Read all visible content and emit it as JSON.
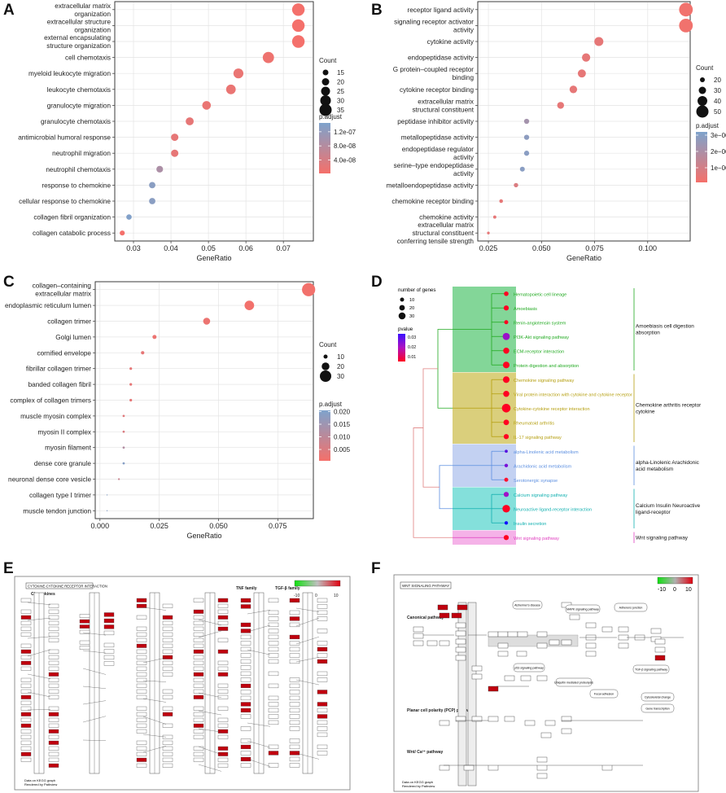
{
  "figure": {
    "panels": [
      "A",
      "B",
      "C",
      "D",
      "E",
      "F"
    ],
    "colors": {
      "low_p": "#f5706a",
      "high_p": "#7ea3cc",
      "grid": "#e4e4e4"
    }
  },
  "chart_data": [
    {
      "id": "A",
      "type": "scatter",
      "xlabel": "GeneRatio",
      "xlim": [
        0.025,
        0.078
      ],
      "xticks": [
        0.03,
        0.04,
        0.05,
        0.06,
        0.07
      ],
      "xtick_labels": [
        "0.03",
        "0.04",
        "0.05",
        "0.06",
        "0.07"
      ],
      "categories": [
        {
          "lines": [
            "extracellular matrix",
            "organization"
          ],
          "x": 0.074,
          "count": 36,
          "p": 3e-09
        },
        {
          "lines": [
            "extracellular structure",
            "organization"
          ],
          "x": 0.074,
          "count": 36,
          "p": 3e-09
        },
        {
          "lines": [
            "external encapsulating",
            "structure organization"
          ],
          "x": 0.074,
          "count": 36,
          "p": 3e-09
        },
        {
          "lines": [
            "cell chemotaxis"
          ],
          "x": 0.066,
          "count": 32,
          "p": 1e-08
        },
        {
          "lines": [
            "myeloid leukocyte migration"
          ],
          "x": 0.058,
          "count": 28,
          "p": 1.5e-08
        },
        {
          "lines": [
            "leukocyte chemotaxis"
          ],
          "x": 0.056,
          "count": 27,
          "p": 1.5e-08
        },
        {
          "lines": [
            "granulocyte migration"
          ],
          "x": 0.0495,
          "count": 24,
          "p": 1.5e-08
        },
        {
          "lines": [
            "granulocyte chemotaxis"
          ],
          "x": 0.045,
          "count": 22,
          "p": 2e-08
        },
        {
          "lines": [
            "antimicrobial humoral response"
          ],
          "x": 0.041,
          "count": 20,
          "p": 2e-08
        },
        {
          "lines": [
            "neutrophil migration"
          ],
          "x": 0.041,
          "count": 20,
          "p": 2e-08
        },
        {
          "lines": [
            "neutrophil chemotaxis"
          ],
          "x": 0.037,
          "count": 18,
          "p": 9e-08
        },
        {
          "lines": [
            "response to chemokine"
          ],
          "x": 0.035,
          "count": 17,
          "p": 1.3e-07
        },
        {
          "lines": [
            "cellular response to chemokine"
          ],
          "x": 0.035,
          "count": 17,
          "p": 1.3e-07
        },
        {
          "lines": [
            "collagen fibril organization"
          ],
          "x": 0.0288,
          "count": 14,
          "p": 1.4e-07
        },
        {
          "lines": [
            "collagen catabolic process"
          ],
          "x": 0.027,
          "count": 13,
          "p": 3e-09
        }
      ],
      "size_legend": {
        "title": "Count",
        "values": [
          15,
          20,
          25,
          30,
          35
        ]
      },
      "color_legend": {
        "title": "p.adjust",
        "labels": [
          "1.2e-07",
          "8.0e-08",
          "4.0e-08"
        ],
        "ticks": [
          1.2e-07,
          8e-08,
          4e-08
        ],
        "range": [
          2e-09,
          1.45e-07
        ]
      }
    },
    {
      "id": "B",
      "type": "scatter",
      "xlabel": "GeneRatio",
      "xlim": [
        0.02,
        0.12
      ],
      "xticks": [
        0.025,
        0.05,
        0.075,
        0.1
      ],
      "xtick_labels": [
        "0.025",
        "0.050",
        "0.075",
        "0.100"
      ],
      "categories": [
        {
          "lines": [
            "receptor ligand activity"
          ],
          "x": 0.118,
          "count": 56,
          "p": 2e-07
        },
        {
          "lines": [
            "signaling receptor activator",
            "activity"
          ],
          "x": 0.118,
          "count": 56,
          "p": 2e-07
        },
        {
          "lines": [
            "cytokine activity"
          ],
          "x": 0.077,
          "count": 37,
          "p": 5e-07
        },
        {
          "lines": [
            "endopeptidase activity"
          ],
          "x": 0.071,
          "count": 34,
          "p": 5e-07
        },
        {
          "lines": [
            "G protein–coupled receptor",
            "binding"
          ],
          "x": 0.069,
          "count": 33,
          "p": 5e-07
        },
        {
          "lines": [
            "cytokine receptor binding"
          ],
          "x": 0.065,
          "count": 31,
          "p": 5e-07
        },
        {
          "lines": [
            "extracellular matrix",
            "structural constituent"
          ],
          "x": 0.059,
          "count": 28,
          "p": 5e-07
        },
        {
          "lines": [
            "peptidase inhibitor activity"
          ],
          "x": 0.043,
          "count": 21,
          "p": 2.2e-06
        },
        {
          "lines": [
            "metallopeptidase activity"
          ],
          "x": 0.043,
          "count": 21,
          "p": 2.8e-06
        },
        {
          "lines": [
            "endopeptidase regulator",
            "activity"
          ],
          "x": 0.043,
          "count": 21,
          "p": 2.9e-06
        },
        {
          "lines": [
            "serine–type endopeptidase",
            "activity"
          ],
          "x": 0.041,
          "count": 20,
          "p": 2.9e-06
        },
        {
          "lines": [
            "metalloendopeptidase activity"
          ],
          "x": 0.038,
          "count": 18,
          "p": 8e-07
        },
        {
          "lines": [
            "chemokine receptor binding"
          ],
          "x": 0.031,
          "count": 15,
          "p": 5e-07
        },
        {
          "lines": [
            "chemokine activity"
          ],
          "x": 0.028,
          "count": 13,
          "p": 5e-07
        },
        {
          "lines": [
            "extracellular matrix",
            "structural constituent",
            "conferring tensile strength"
          ],
          "x": 0.025,
          "count": 11,
          "p": 5e-07
        }
      ],
      "size_legend": {
        "title": "Count",
        "values": [
          20,
          30,
          40,
          50
        ]
      },
      "color_legend": {
        "title": "p.adjust",
        "labels": [
          "3e−06",
          "2e−06",
          "1e−06"
        ],
        "ticks": [
          3e-06,
          2e-06,
          1e-06
        ],
        "range": [
          1e-07,
          3.2e-06
        ]
      }
    },
    {
      "id": "C",
      "type": "scatter",
      "xlabel": "GeneRatio",
      "xlim": [
        -0.002,
        0.09
      ],
      "xticks": [
        0.0,
        0.025,
        0.05,
        0.075
      ],
      "xtick_labels": [
        "0.000",
        "0.025",
        "0.050",
        "0.075"
      ],
      "categories": [
        {
          "lines": [
            "collagen–containing",
            "extracellular matrix"
          ],
          "x": 0.088,
          "count": 35,
          "p": 0.001
        },
        {
          "lines": [
            "endoplasmic reticulum lumen"
          ],
          "x": 0.063,
          "count": 25,
          "p": 0.001
        },
        {
          "lines": [
            "collagen trimer"
          ],
          "x": 0.045,
          "count": 18,
          "p": 0.002
        },
        {
          "lines": [
            "Golgi lumen"
          ],
          "x": 0.023,
          "count": 10,
          "p": 0.002
        },
        {
          "lines": [
            "cornified envelope"
          ],
          "x": 0.018,
          "count": 8,
          "p": 0.003
        },
        {
          "lines": [
            "fibrillar collagen trimer"
          ],
          "x": 0.013,
          "count": 6,
          "p": 0.003
        },
        {
          "lines": [
            "banded collagen fibril"
          ],
          "x": 0.013,
          "count": 6,
          "p": 0.003
        },
        {
          "lines": [
            "complex of collagen trimers"
          ],
          "x": 0.013,
          "count": 6,
          "p": 0.003
        },
        {
          "lines": [
            "muscle myosin complex"
          ],
          "x": 0.01,
          "count": 5,
          "p": 0.004
        },
        {
          "lines": [
            "myosin II complex"
          ],
          "x": 0.01,
          "count": 5,
          "p": 0.005
        },
        {
          "lines": [
            "myosin filament"
          ],
          "x": 0.01,
          "count": 5,
          "p": 0.012
        },
        {
          "lines": [
            "dense core granule"
          ],
          "x": 0.01,
          "count": 5,
          "p": 0.019
        },
        {
          "lines": [
            "neuronal dense core vesicle"
          ],
          "x": 0.008,
          "count": 4,
          "p": 0.008
        },
        {
          "lines": [
            "collagen type I trimer"
          ],
          "x": 0.003,
          "count": 2,
          "p": 0.019
        },
        {
          "lines": [
            "muscle tendon junction"
          ],
          "x": 0.003,
          "count": 2,
          "p": 0.019
        }
      ],
      "size_legend": {
        "title": "Count",
        "values": [
          10,
          20,
          30
        ]
      },
      "color_legend": {
        "title": "p.adjust",
        "labels": [
          "0.020",
          "0.015",
          "0.010",
          "0.005"
        ],
        "ticks": [
          0.02,
          0.015,
          0.01,
          0.005
        ],
        "range": [
          0.0005,
          0.0205
        ]
      }
    },
    {
      "id": "D",
      "type": "table",
      "size_legend": {
        "title": "number of genes",
        "values": [
          10,
          20,
          30
        ]
      },
      "color_legend": {
        "title": "pvalue",
        "labels": [
          "0.03",
          "0.02",
          "0.01"
        ]
      },
      "clusters": [
        {
          "color": "#6dcf86",
          "text_color": "#22aa22",
          "label_lines": [
            "Amoebiasis cell digestion",
            "absorption"
          ],
          "items": [
            "Hematopoietic cell lineage",
            "Amoebiasis",
            "Renin-angiotensin system",
            "PI3K-Akt signaling pathway",
            "ECM-receptor interaction",
            "Protein digestion and absorption"
          ],
          "dot_sizes": [
            9,
            10,
            8,
            14,
            12,
            13
          ],
          "dot_colors": [
            "#ff0022",
            "#ff0022",
            "#ff0022",
            "#9a10c8",
            "#ff0022",
            "#ff0022"
          ]
        },
        {
          "color": "#d4c765",
          "text_color": "#b59f10",
          "label_lines": [
            "Chemokine arthritis receptor",
            "cytokine"
          ],
          "items": [
            "Chemokine signaling pathway",
            "Viral protein interaction with cytokine and cytokine receptor",
            "Cytokine-cytokine receptor interaction",
            "Rheumatoid arthritis",
            "IL-17 signaling pathway"
          ],
          "dot_sizes": [
            13,
            12,
            17,
            11,
            10
          ],
          "dot_colors": [
            "#ff0022",
            "#ff0022",
            "#ff0022",
            "#ff0022",
            "#ff0022"
          ]
        },
        {
          "color": "#b8c9f0",
          "text_color": "#5c8fe0",
          "label_lines": [
            "alpha-Linolenic Arachidonic",
            "acid metabolism"
          ],
          "items": [
            "alpha-Linolenic acid metabolism",
            "Arachidonic acid metabolism",
            "Serotonergic synapse"
          ],
          "dot_sizes": [
            6,
            7,
            8
          ],
          "dot_colors": [
            "#5510e0",
            "#7a10d8",
            "#ff1430"
          ]
        },
        {
          "color": "#6fdad5",
          "text_color": "#12b0b0",
          "label_lines": [
            "Calcium Insulin Neuroactive",
            "ligand-receptor"
          ],
          "items": [
            "Calcium signaling pathway",
            "Neuroactive ligand-receptor interaction",
            "Insulin secretion"
          ],
          "dot_sizes": [
            10,
            15,
            7
          ],
          "dot_colors": [
            "#a010c8",
            "#ff0022",
            "#1010ff"
          ]
        },
        {
          "color": "#f3a5e4",
          "text_color": "#e040c0",
          "label_lines": [
            "Wnt signaling pathway"
          ],
          "items": [
            "Wnt signaling pathway"
          ],
          "dot_sizes": [
            10
          ],
          "dot_colors": [
            "#ff0022"
          ]
        }
      ]
    }
  ],
  "panelE": {
    "title": "CYTOKINE-CYTOKINE RECEPTOR INTERACTION",
    "legend_labels": [
      "-10",
      "0",
      "10"
    ],
    "groups": [
      "Chemokines",
      "TNF family",
      "TGF-β family"
    ],
    "footer": [
      "Data on KEGG graph",
      "Rendered by Pathview"
    ]
  },
  "panelF": {
    "title": "WNT SIGNALING PATHWAY",
    "legend_labels": [
      "-10",
      "0",
      "10"
    ],
    "sections": [
      "Canonical pathway",
      "Planar cell polarity (PCP) pathway",
      "Wnt/ Ca²⁺ pathway"
    ],
    "bubbles": [
      "Adherens junction",
      "Alzheimer's disease",
      "MAPK signaling pathway",
      "Focal adhesion",
      "Cytoskeletal change",
      "Gene transcription",
      "Ubiquitin mediated proteolysis",
      "p53 signaling pathway",
      "TGF-β signaling pathway"
    ],
    "footer": [
      "Data on KEGG graph",
      "Rendered by Pathview"
    ]
  }
}
